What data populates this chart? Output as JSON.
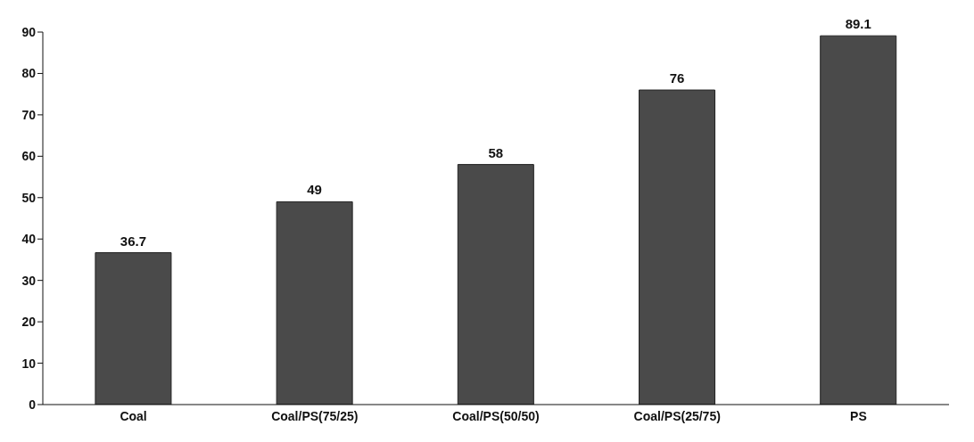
{
  "chart_data": {
    "type": "bar",
    "categories": [
      "Coal",
      "Coal/PS(75/25)",
      "Coal/PS(50/50)",
      "Coal/PS(25/75)",
      "PS"
    ],
    "values": [
      36.7,
      49,
      58,
      76,
      89.1
    ],
    "color": "#4a4a4a",
    "ylim": [
      0,
      90
    ],
    "yticks": [
      0,
      10,
      20,
      30,
      40,
      50,
      60,
      70,
      80,
      90
    ],
    "data_labels": true,
    "grid": false,
    "legend": false
  }
}
